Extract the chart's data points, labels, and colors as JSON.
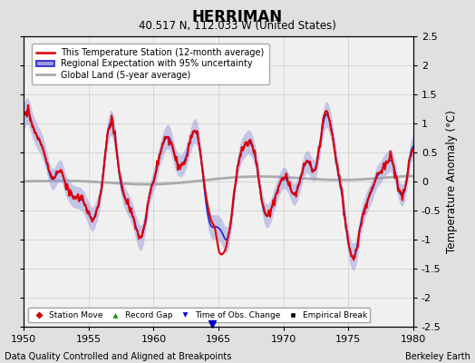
{
  "title": "HERRIMAN",
  "subtitle": "40.517 N, 112.033 W (United States)",
  "ylabel": "Temperature Anomaly (°C)",
  "xlabel_left": "Data Quality Controlled and Aligned at Breakpoints",
  "xlabel_right": "Berkeley Earth",
  "ylim": [
    -2.5,
    2.5
  ],
  "xlim": [
    1950,
    1980
  ],
  "yticks": [
    -2.5,
    -2,
    -1.5,
    -1,
    -0.5,
    0,
    0.5,
    1,
    1.5,
    2,
    2.5
  ],
  "xticks": [
    1950,
    1955,
    1960,
    1965,
    1970,
    1975,
    1980
  ],
  "background_color": "#e0e0e0",
  "plot_bg_color": "#f0f0f0",
  "regional_color": "#2222cc",
  "regional_fill_color": "#9999dd",
  "station_color": "#dd0000",
  "global_color": "#aaaaaa",
  "legend_items": [
    {
      "label": "This Temperature Station (12-month average)",
      "color": "#dd0000"
    },
    {
      "label": "Regional Expectation with 95% uncertainty",
      "color": "#2222cc",
      "fill": "#9999dd"
    },
    {
      "label": "Global Land (5-year average)",
      "color": "#aaaaaa"
    }
  ],
  "marker_legend": [
    {
      "label": "Station Move",
      "color": "#cc0000",
      "marker": "D"
    },
    {
      "label": "Record Gap",
      "color": "#009900",
      "marker": "^"
    },
    {
      "label": "Time of Obs. Change",
      "color": "#0000cc",
      "marker": "v"
    },
    {
      "label": "Empirical Break",
      "color": "#000000",
      "marker": "s"
    }
  ],
  "time_of_obs_change_x": 1964.5
}
